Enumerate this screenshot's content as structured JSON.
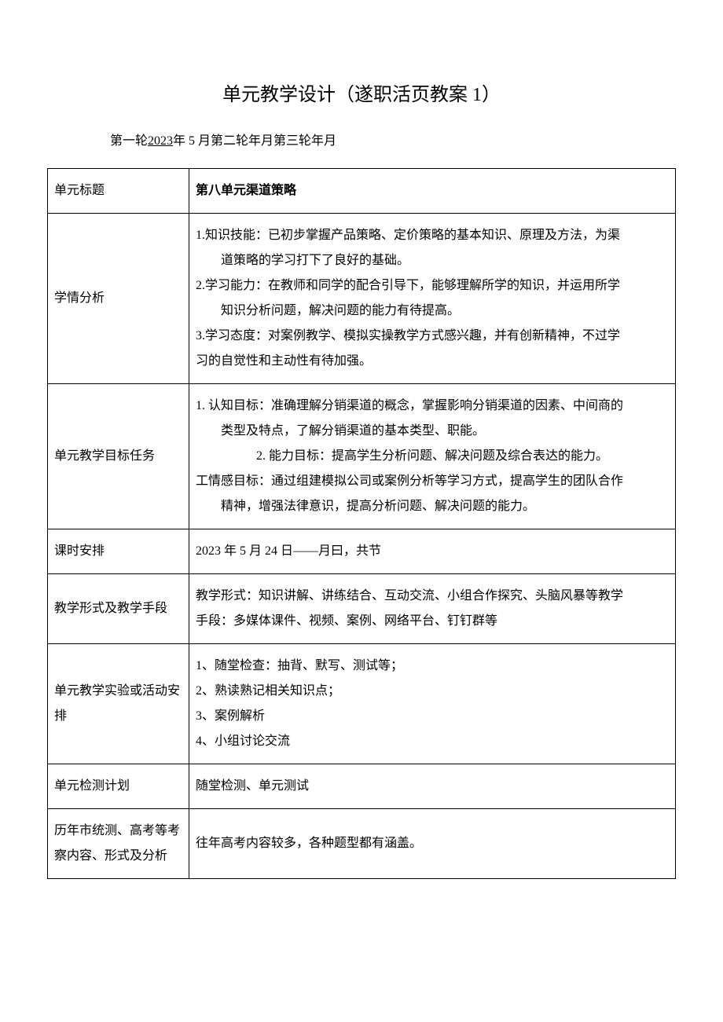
{
  "title": "单元教学设计（遂职活页教案 1）",
  "rounds": {
    "prefix1": "第一轮",
    "year1": "2023",
    "suffix1": "年 5 月第二轮年月第三轮年月"
  },
  "rows": {
    "unit_title": {
      "label": "单元标题",
      "content": "第八单元渠道策略"
    },
    "student_analysis": {
      "label": "学情分析",
      "line1": "1.知识技能：已初步掌握产品策略、定价策略的基本知识、原理及方法，为渠",
      "line1b": "道策略的学习打下了良好的基础。",
      "line2": "2.学习能力：在教师和同学的配合引导下，能够理解所学的知识，并运用所学",
      "line2b": "知识分析问题，解决问题的能力有待提高。",
      "line3": "3.学习态度：对案例教学、模拟实操教学方式感兴趣，并有创新精神，不过学",
      "line3b": "习的自觉性和主动性有待加强。"
    },
    "objectives": {
      "label": "单元教学目标任务",
      "line1": "1. 认知目标：准确理解分销渠道的概念，掌握影响分销渠道的因素、中间商的",
      "line1b": "类型及特点，了解分销渠道的基本类型、职能。",
      "line2": "2. 能力目标：提高学生分析问题、解决问题及综合表达的能力。",
      "line3": "工情感目标：通过组建模拟公司或案例分析等学习方式，提高学生的团队合作",
      "line3b": "精神，增强法律意识，提高分析问题、解决问题的能力。"
    },
    "schedule": {
      "label": "课时安排",
      "content": "2023 年 5 月 24 日——月曰，共节"
    },
    "methods": {
      "label": "教学形式及教学手段",
      "line1": "教学形式：知识讲解、讲练结合、互动交流、小组合作探究、头脑风暴等教学",
      "line2": "手段：多媒体课件、视频、案例、网络平台、钉钉群等"
    },
    "activities": {
      "label": "单元教学实验或活动安排",
      "line1": "1、随堂检查：抽背、默写、测试等；",
      "line2": "2、熟读熟记相关知识点；",
      "line3": "3、案例解析",
      "line4": "4、小组讨论交流"
    },
    "test_plan": {
      "label": "单元检测计划",
      "content": "随堂检测、单元测试"
    },
    "exam_analysis": {
      "label": "历年市统测、高考等考察内容、形式及分析",
      "content": "往年高考内容较多，各种题型都有涵盖。"
    }
  }
}
